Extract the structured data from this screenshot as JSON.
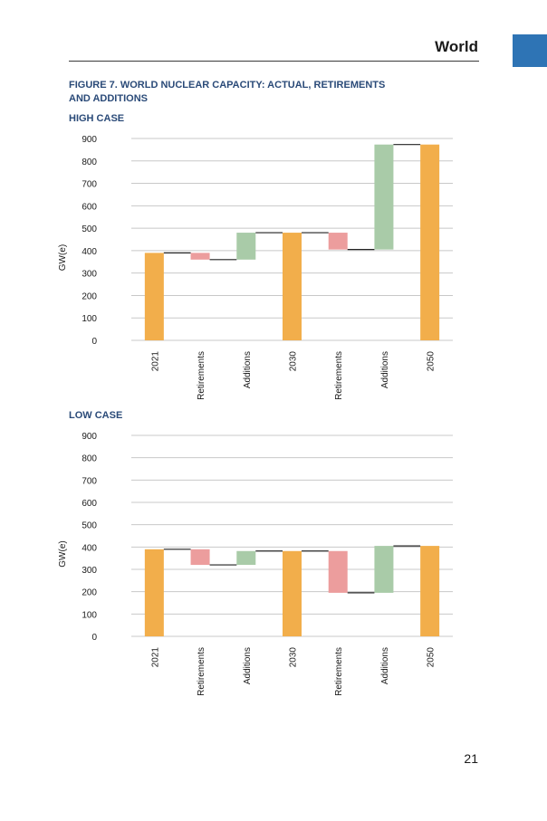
{
  "header": {
    "section": "World"
  },
  "figure": {
    "title_line1": "FIGURE 7. WORLD NUCLEAR CAPACITY: ACTUAL, RETIREMENTS",
    "title_line2": "AND ADDITIONS"
  },
  "colors": {
    "actual": "#f2ae4b",
    "retirements": "#ec9d9d",
    "additions": "#a9cba8",
    "grid": "#c8c8c8",
    "heading": "#2a4a78",
    "tab": "#2e74b5"
  },
  "page_number": "21",
  "chart_data": [
    {
      "type": "waterfall",
      "title": "HIGH CASE",
      "ylabel": "GW(e)",
      "ylim": [
        0,
        900
      ],
      "yticks": [
        0,
        100,
        200,
        300,
        400,
        500,
        600,
        700,
        800,
        900
      ],
      "categories": [
        "2021",
        "Retirements",
        "Additions",
        "2030",
        "Retirements",
        "Additions",
        "2050"
      ],
      "steps": [
        {
          "label": "2021",
          "kind": "total",
          "value": 390
        },
        {
          "label": "Retirements",
          "kind": "decrease",
          "value": -30
        },
        {
          "label": "Additions",
          "kind": "increase",
          "value": 120
        },
        {
          "label": "2030",
          "kind": "total",
          "value": 480
        },
        {
          "label": "Retirements",
          "kind": "decrease",
          "value": -75
        },
        {
          "label": "Additions",
          "kind": "increase",
          "value": 468
        },
        {
          "label": "2050",
          "kind": "total",
          "value": 873
        }
      ]
    },
    {
      "type": "waterfall",
      "title": "LOW CASE",
      "ylabel": "GW(e)",
      "ylim": [
        0,
        900
      ],
      "yticks": [
        0,
        100,
        200,
        300,
        400,
        500,
        600,
        700,
        800,
        900
      ],
      "categories": [
        "2021",
        "Retirements",
        "Additions",
        "2030",
        "Retirements",
        "Additions",
        "2050"
      ],
      "steps": [
        {
          "label": "2021",
          "kind": "total",
          "value": 390
        },
        {
          "label": "Retirements",
          "kind": "decrease",
          "value": -70
        },
        {
          "label": "Additions",
          "kind": "increase",
          "value": 62
        },
        {
          "label": "2030",
          "kind": "total",
          "value": 382
        },
        {
          "label": "Retirements",
          "kind": "decrease",
          "value": -187
        },
        {
          "label": "Additions",
          "kind": "increase",
          "value": 210
        },
        {
          "label": "2050",
          "kind": "total",
          "value": 405
        }
      ]
    }
  ]
}
